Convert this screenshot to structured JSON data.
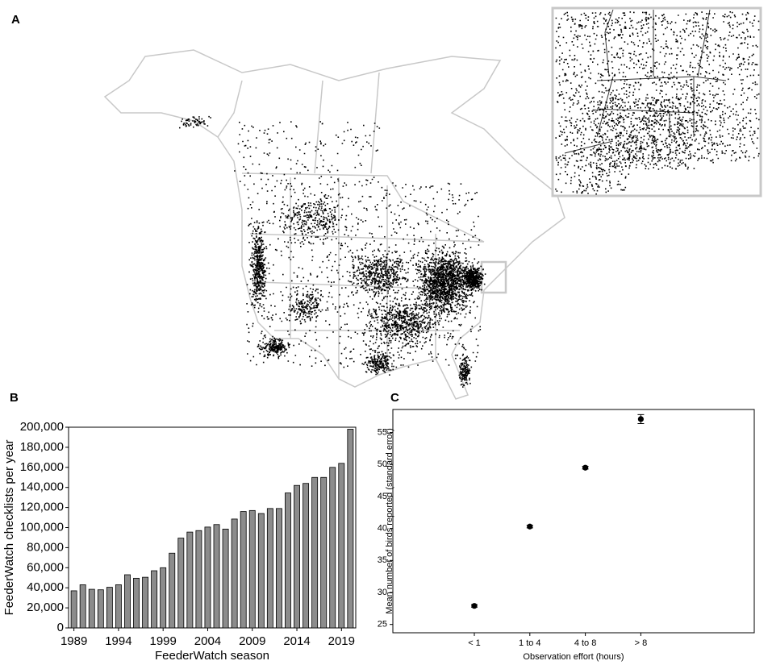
{
  "chart_data": [
    {
      "type": "map",
      "label": "A"
    },
    {
      "type": "bar",
      "label": "B",
      "xlabel": "FeederWatch season",
      "ylabel": "FeederWatch checklists per year",
      "x": [
        1989,
        1990,
        1991,
        1992,
        1993,
        1994,
        1995,
        1996,
        1997,
        1998,
        1999,
        2000,
        2001,
        2002,
        2003,
        2004,
        2005,
        2006,
        2007,
        2008,
        2009,
        2010,
        2011,
        2012,
        2013,
        2014,
        2015,
        2016,
        2017,
        2018,
        2019,
        2020
      ],
      "values": [
        37000,
        43000,
        38500,
        38000,
        40500,
        43000,
        53000,
        49500,
        50500,
        57000,
        60000,
        74500,
        89500,
        95500,
        97000,
        100500,
        103000,
        98500,
        108500,
        116000,
        117000,
        114000,
        119000,
        119000,
        134500,
        142000,
        144000,
        150000,
        150000,
        160000,
        164000,
        198000
      ],
      "color": "#8c8c8c",
      "xlim": [
        1988.4,
        2020.6
      ],
      "xticks": [
        1989,
        1994,
        1999,
        2004,
        2009,
        2014,
        2019
      ],
      "ylim": [
        0,
        200000
      ],
      "yticks": [
        0,
        {
          "value": 20000,
          "label": "20,000"
        },
        {
          "value": 40000,
          "label": "40,000"
        },
        {
          "value": 60000,
          "label": "60,000"
        },
        {
          "value": 80000,
          "label": "80,000"
        },
        {
          "value": 100000,
          "label": "100,000"
        },
        {
          "value": 120000,
          "label": "120,000"
        },
        {
          "value": 140000,
          "label": "140,000"
        },
        {
          "value": 160000,
          "label": "160,000"
        },
        {
          "value": 180000,
          "label": "180,000"
        },
        {
          "value": 200000,
          "label": "200,000"
        }
      ]
    },
    {
      "type": "errorbar",
      "label": "C",
      "xlabel": "Observation effort (hours)",
      "ylabel": "Mean number of birds reported (standard error)",
      "categories": [
        "< 1",
        "1 to 4",
        "4 to 8",
        "> 8"
      ],
      "values": [
        27.9,
        40.3,
        49.5,
        57.1
      ],
      "errors": [
        0.2,
        0.2,
        0.2,
        0.7
      ],
      "color": "#000000",
      "ylim": [
        23.7,
        58.6
      ],
      "yticks": [
        25,
        30,
        35,
        40,
        45,
        50,
        55
      ]
    }
  ]
}
